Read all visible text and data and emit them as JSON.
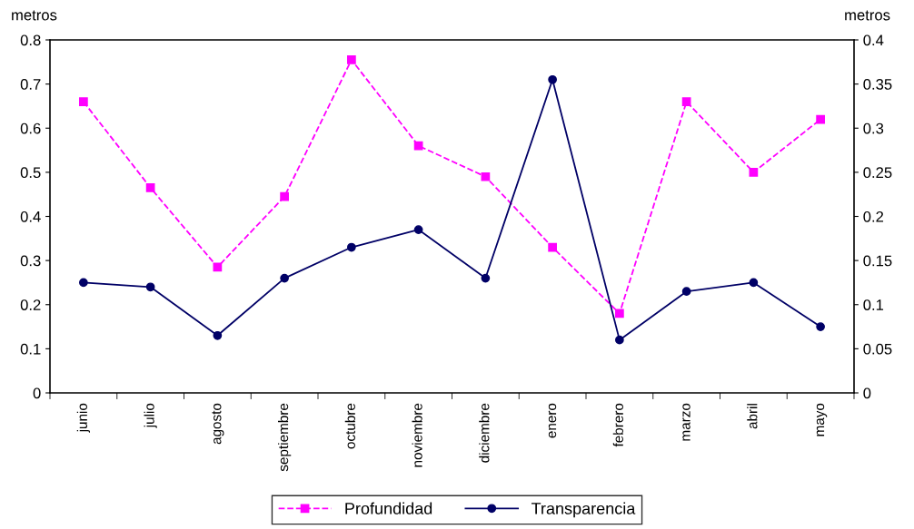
{
  "chart_data": {
    "type": "line",
    "ylabel": "metros",
    "y2label": "metros",
    "categories": [
      "junio",
      "julio",
      "agosto",
      "septiembre",
      "octubre",
      "noviembre",
      "diciembre",
      "enero",
      "febrero",
      "marzo",
      "abril",
      "mayo"
    ],
    "series": [
      {
        "name": "Profundidad",
        "color": "#ff00ff",
        "marker": "square",
        "line_style": "dashed",
        "values": [
          0.66,
          0.465,
          0.285,
          0.445,
          0.755,
          0.56,
          0.49,
          0.33,
          0.18,
          0.66,
          0.5,
          0.62
        ]
      },
      {
        "name": "Transparencia",
        "color": "#000066",
        "marker": "circle",
        "line_style": "solid",
        "axis": "y2",
        "values": [
          0.125,
          0.12,
          0.065,
          0.13,
          0.165,
          0.185,
          0.13,
          0.355,
          0.06,
          0.115,
          0.125,
          0.075
        ]
      }
    ],
    "ylim": [
      0,
      0.8
    ],
    "yticks": [
      {
        "value": 0,
        "label": "0"
      },
      0.1,
      0.2,
      0.3,
      0.4,
      0.5,
      0.6,
      0.7,
      0.8
    ],
    "y2lim": [
      0,
      0.4
    ],
    "y2ticks": [
      {
        "value": 0,
        "label": "0"
      },
      0.05,
      0.1,
      0.15,
      0.2,
      0.25,
      0.3,
      0.35,
      0.4
    ],
    "grid": false,
    "legend": "bottom"
  }
}
